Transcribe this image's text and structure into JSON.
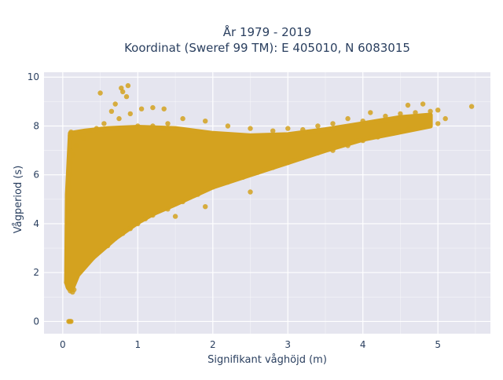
{
  "chart_data": {
    "type": "scatter",
    "title_lines": [
      "År 1979 - 2019",
      "Koordinat (Sweref 99 TM): E 405010, N 6083015"
    ],
    "xlabel": "Signifikant våghöjd (m)",
    "ylabel": "Vågperiod (s)",
    "xlim": [
      -0.25,
      5.7
    ],
    "ylim": [
      -0.5,
      10.2
    ],
    "xticks": [
      0,
      1,
      2,
      3,
      4,
      5
    ],
    "yticks": [
      0,
      2,
      4,
      6,
      8,
      10
    ],
    "grid": true,
    "legend": "none",
    "colors": {
      "marker": "#d4a21f",
      "plot_bg": "#e5e5ef",
      "grid": "#ffffff",
      "text": "#2a3f5f"
    },
    "points": [
      [
        0.08,
        0.0
      ],
      [
        0.09,
        0.0
      ],
      [
        0.1,
        0.0
      ],
      [
        0.11,
        0.0
      ],
      [
        0.05,
        1.6
      ],
      [
        0.08,
        1.35
      ],
      [
        0.1,
        1.25
      ],
      [
        0.13,
        1.2
      ],
      [
        0.15,
        1.3
      ],
      [
        0.06,
        2.1
      ],
      [
        0.07,
        2.6
      ],
      [
        0.06,
        3.0
      ],
      [
        0.07,
        3.5
      ],
      [
        0.08,
        4.0
      ],
      [
        0.08,
        4.5
      ],
      [
        0.09,
        5.0
      ],
      [
        0.09,
        5.5
      ],
      [
        0.1,
        6.0
      ],
      [
        0.1,
        6.5
      ],
      [
        0.1,
        7.0
      ],
      [
        0.1,
        7.6
      ],
      [
        0.11,
        7.75
      ],
      [
        0.14,
        6.8
      ],
      [
        0.18,
        7.2
      ],
      [
        0.22,
        7.6
      ],
      [
        0.28,
        7.5
      ],
      [
        0.35,
        7.8
      ],
      [
        0.45,
        7.9
      ],
      [
        0.5,
        9.35
      ],
      [
        0.7,
        8.9
      ],
      [
        0.78,
        9.55
      ],
      [
        0.8,
        9.4
      ],
      [
        0.87,
        9.65
      ],
      [
        0.85,
        9.2
      ],
      [
        0.55,
        8.1
      ],
      [
        0.65,
        8.6
      ],
      [
        0.75,
        8.3
      ],
      [
        0.9,
        8.5
      ],
      [
        1.05,
        8.7
      ],
      [
        1.2,
        8.75
      ],
      [
        1.35,
        8.7
      ],
      [
        1.0,
        8.0
      ],
      [
        1.2,
        8.0
      ],
      [
        1.4,
        8.1
      ],
      [
        1.6,
        8.3
      ],
      [
        1.9,
        8.2
      ],
      [
        2.2,
        8.0
      ],
      [
        2.5,
        7.9
      ],
      [
        2.8,
        7.8
      ],
      [
        3.0,
        7.9
      ],
      [
        3.2,
        7.85
      ],
      [
        3.4,
        8.0
      ],
      [
        3.6,
        8.1
      ],
      [
        3.8,
        8.3
      ],
      [
        4.0,
        8.2
      ],
      [
        4.1,
        8.55
      ],
      [
        4.3,
        8.4
      ],
      [
        4.5,
        8.5
      ],
      [
        4.7,
        8.55
      ],
      [
        4.6,
        8.85
      ],
      [
        4.8,
        8.9
      ],
      [
        4.9,
        8.6
      ],
      [
        5.0,
        8.65
      ],
      [
        5.1,
        8.3
      ],
      [
        5.45,
        8.8
      ],
      [
        0.2,
        2.0
      ],
      [
        0.3,
        2.3
      ],
      [
        0.4,
        2.6
      ],
      [
        0.5,
        2.9
      ],
      [
        0.6,
        3.1
      ],
      [
        0.7,
        3.4
      ],
      [
        0.8,
        3.6
      ],
      [
        0.9,
        3.8
      ],
      [
        1.0,
        4.0
      ],
      [
        1.1,
        4.2
      ],
      [
        1.2,
        4.35
      ],
      [
        1.4,
        4.6
      ],
      [
        1.6,
        4.9
      ],
      [
        1.8,
        5.2
      ],
      [
        2.0,
        5.5
      ],
      [
        2.2,
        5.7
      ],
      [
        2.4,
        5.9
      ],
      [
        2.6,
        6.1
      ],
      [
        2.8,
        6.3
      ],
      [
        3.0,
        6.5
      ],
      [
        3.2,
        6.7
      ],
      [
        3.4,
        6.9
      ],
      [
        3.6,
        7.0
      ],
      [
        3.8,
        7.2
      ],
      [
        4.0,
        7.4
      ],
      [
        4.2,
        7.55
      ],
      [
        4.4,
        7.7
      ],
      [
        4.6,
        7.85
      ],
      [
        4.8,
        8.0
      ],
      [
        5.0,
        8.1
      ],
      [
        1.9,
        4.7
      ],
      [
        1.5,
        4.3
      ],
      [
        2.5,
        5.3
      ]
    ]
  }
}
